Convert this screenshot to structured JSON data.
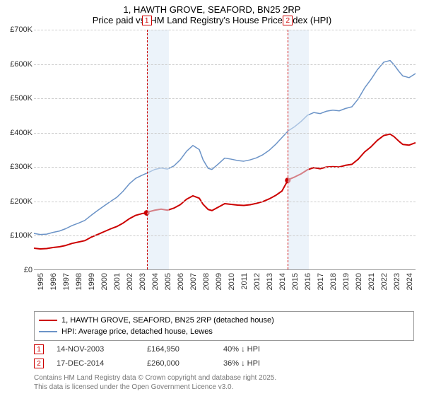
{
  "title_line1": "1, HAWTH GROVE, SEAFORD, BN25 2RP",
  "title_line2": "Price paid vs. HM Land Registry's House Price Index (HPI)",
  "x_axis": {
    "min_year": 1995,
    "max_year": 2025,
    "ticks": [
      "1995",
      "1996",
      "1997",
      "1998",
      "1999",
      "2000",
      "2001",
      "2002",
      "2003",
      "2004",
      "2005",
      "2006",
      "2007",
      "2008",
      "2009",
      "2010",
      "2011",
      "2012",
      "2013",
      "2014",
      "2015",
      "2016",
      "2017",
      "2018",
      "2019",
      "2020",
      "2021",
      "2022",
      "2023",
      "2024"
    ]
  },
  "y_axis": {
    "min": 0,
    "max": 700000,
    "ticks": [
      0,
      100000,
      200000,
      300000,
      400000,
      500000,
      600000,
      700000
    ],
    "tick_labels": [
      "£0",
      "£100K",
      "£200K",
      "£300K",
      "£400K",
      "£500K",
      "£600K",
      "£700K"
    ]
  },
  "styling": {
    "grid_color": "#cccccc",
    "background": "#ffffff",
    "band_color": "#dce9f5",
    "vline_color": "#cc0000",
    "title_fontsize": 13,
    "axis_fontsize": 11
  },
  "series": [
    {
      "id": "hpi",
      "label": "HPI: Average price, detached house, Lewes",
      "color": "#6b93c7",
      "width": 1.5,
      "points": [
        [
          1995.0,
          105000
        ],
        [
          1995.5,
          102000
        ],
        [
          1996.0,
          103000
        ],
        [
          1996.5,
          108000
        ],
        [
          1997.0,
          112000
        ],
        [
          1997.5,
          119000
        ],
        [
          1998.0,
          128000
        ],
        [
          1998.5,
          135000
        ],
        [
          1999.0,
          143000
        ],
        [
          1999.5,
          158000
        ],
        [
          2000.0,
          172000
        ],
        [
          2000.5,
          185000
        ],
        [
          2001.0,
          198000
        ],
        [
          2001.5,
          210000
        ],
        [
          2002.0,
          228000
        ],
        [
          2002.5,
          250000
        ],
        [
          2003.0,
          266000
        ],
        [
          2003.5,
          275000
        ],
        [
          2004.0,
          283000
        ],
        [
          2004.5,
          292000
        ],
        [
          2005.0,
          296000
        ],
        [
          2005.5,
          293000
        ],
        [
          2006.0,
          302000
        ],
        [
          2006.5,
          320000
        ],
        [
          2007.0,
          345000
        ],
        [
          2007.5,
          362000
        ],
        [
          2008.0,
          350000
        ],
        [
          2008.3,
          320000
        ],
        [
          2008.7,
          295000
        ],
        [
          2009.0,
          292000
        ],
        [
          2009.5,
          308000
        ],
        [
          2010.0,
          325000
        ],
        [
          2010.5,
          322000
        ],
        [
          2011.0,
          318000
        ],
        [
          2011.5,
          316000
        ],
        [
          2012.0,
          320000
        ],
        [
          2012.5,
          326000
        ],
        [
          2013.0,
          335000
        ],
        [
          2013.5,
          348000
        ],
        [
          2014.0,
          365000
        ],
        [
          2014.5,
          385000
        ],
        [
          2015.0,
          405000
        ],
        [
          2015.5,
          417000
        ],
        [
          2016.0,
          432000
        ],
        [
          2016.5,
          450000
        ],
        [
          2017.0,
          458000
        ],
        [
          2017.5,
          455000
        ],
        [
          2018.0,
          462000
        ],
        [
          2018.5,
          465000
        ],
        [
          2019.0,
          463000
        ],
        [
          2019.5,
          470000
        ],
        [
          2020.0,
          475000
        ],
        [
          2020.5,
          498000
        ],
        [
          2021.0,
          530000
        ],
        [
          2021.5,
          555000
        ],
        [
          2022.0,
          583000
        ],
        [
          2022.5,
          605000
        ],
        [
          2023.0,
          610000
        ],
        [
          2023.3,
          598000
        ],
        [
          2023.7,
          578000
        ],
        [
          2024.0,
          565000
        ],
        [
          2024.5,
          560000
        ],
        [
          2025.0,
          572000
        ]
      ]
    },
    {
      "id": "property",
      "label": "1, HAWTH GROVE, SEAFORD, BN25 2RP (detached house)",
      "color": "#cc0000",
      "width": 2,
      "points": [
        [
          1995.0,
          62000
        ],
        [
          1995.5,
          60000
        ],
        [
          1996.0,
          61000
        ],
        [
          1996.5,
          64000
        ],
        [
          1997.0,
          66000
        ],
        [
          1997.5,
          70000
        ],
        [
          1998.0,
          76000
        ],
        [
          1998.5,
          80000
        ],
        [
          1999.0,
          84000
        ],
        [
          1999.5,
          94000
        ],
        [
          2000.0,
          102000
        ],
        [
          2000.5,
          110000
        ],
        [
          2001.0,
          118000
        ],
        [
          2001.5,
          125000
        ],
        [
          2002.0,
          135000
        ],
        [
          2002.5,
          148000
        ],
        [
          2003.0,
          158000
        ],
        [
          2003.5,
          163000
        ],
        [
          2003.87,
          164950
        ],
        [
          2004.0,
          168000
        ],
        [
          2004.5,
          173000
        ],
        [
          2005.0,
          176000
        ],
        [
          2005.5,
          173000
        ],
        [
          2006.0,
          179000
        ],
        [
          2006.5,
          189000
        ],
        [
          2007.0,
          205000
        ],
        [
          2007.5,
          215000
        ],
        [
          2008.0,
          208000
        ],
        [
          2008.3,
          190000
        ],
        [
          2008.7,
          175000
        ],
        [
          2009.0,
          172000
        ],
        [
          2009.5,
          182000
        ],
        [
          2010.0,
          192000
        ],
        [
          2010.5,
          190000
        ],
        [
          2011.0,
          188000
        ],
        [
          2011.5,
          187000
        ],
        [
          2012.0,
          189000
        ],
        [
          2012.5,
          193000
        ],
        [
          2013.0,
          198000
        ],
        [
          2013.5,
          206000
        ],
        [
          2014.0,
          216000
        ],
        [
          2014.5,
          229000
        ],
        [
          2014.96,
          260000
        ],
        [
          2015.0,
          262000
        ],
        [
          2015.5,
          270000
        ],
        [
          2016.0,
          279000
        ],
        [
          2016.5,
          291000
        ],
        [
          2017.0,
          297000
        ],
        [
          2017.5,
          294000
        ],
        [
          2018.0,
          299000
        ],
        [
          2018.5,
          300000
        ],
        [
          2019.0,
          299000
        ],
        [
          2019.5,
          304000
        ],
        [
          2020.0,
          307000
        ],
        [
          2020.5,
          322000
        ],
        [
          2021.0,
          343000
        ],
        [
          2021.5,
          358000
        ],
        [
          2022.0,
          377000
        ],
        [
          2022.5,
          391000
        ],
        [
          2023.0,
          395000
        ],
        [
          2023.3,
          388000
        ],
        [
          2023.7,
          374000
        ],
        [
          2024.0,
          365000
        ],
        [
          2024.5,
          363000
        ],
        [
          2025.0,
          370000
        ]
      ]
    }
  ],
  "sale_markers": [
    {
      "n": "1",
      "year": 2003.87,
      "price": 164950
    },
    {
      "n": "2",
      "year": 2014.96,
      "price": 260000
    }
  ],
  "shade_bands": [
    {
      "from_year": 2003.87,
      "to_year": 2005.6
    },
    {
      "from_year": 2014.96,
      "to_year": 2016.6
    }
  ],
  "legend": [
    {
      "color": "#cc0000",
      "text": "1, HAWTH GROVE, SEAFORD, BN25 2RP (detached house)"
    },
    {
      "color": "#6b93c7",
      "text": "HPI: Average price, detached house, Lewes"
    }
  ],
  "sales_rows": [
    {
      "n": "1",
      "date": "14-NOV-2003",
      "price": "£164,950",
      "diff": "40% ↓ HPI"
    },
    {
      "n": "2",
      "date": "17-DEC-2014",
      "price": "£260,000",
      "diff": "36% ↓ HPI"
    }
  ],
  "footer1": "Contains HM Land Registry data © Crown copyright and database right 2025.",
  "footer2": "This data is licensed under the Open Government Licence v3.0."
}
